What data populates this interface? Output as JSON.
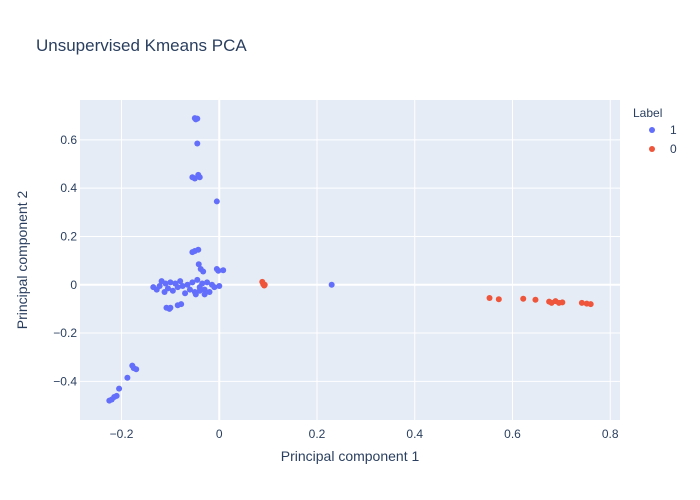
{
  "chart_data": {
    "type": "scatter",
    "title": "Unsupervised Kmeans PCA",
    "xlabel": "Principal component 1",
    "ylabel": "Principal component 2",
    "xlim": [
      -0.285,
      0.82
    ],
    "ylim": [
      -0.56,
      0.765
    ],
    "x_ticks": [
      -0.2,
      0,
      0.2,
      0.4,
      0.6,
      0.8
    ],
    "x_tick_labels": [
      "−0.2",
      "0",
      "0.2",
      "0.4",
      "0.6",
      "0.8"
    ],
    "y_ticks": [
      -0.4,
      -0.2,
      0,
      0.2,
      0.4,
      0.6
    ],
    "y_tick_labels": [
      "−0.4",
      "−0.2",
      "0",
      "0.2",
      "0.4",
      "0.6"
    ],
    "grid": true,
    "legend_title": "Label",
    "legend_position": "top-right",
    "background_color": "#e5ecf6",
    "series": [
      {
        "name": "1",
        "color": "#636efa",
        "points": [
          [
            -0.05,
            0.69
          ],
          [
            -0.048,
            0.685
          ],
          [
            -0.045,
            0.688
          ],
          [
            -0.045,
            0.585
          ],
          [
            -0.055,
            0.445
          ],
          [
            -0.05,
            0.44
          ],
          [
            -0.043,
            0.455
          ],
          [
            -0.04,
            0.445
          ],
          [
            -0.005,
            0.345
          ],
          [
            -0.055,
            0.135
          ],
          [
            -0.05,
            0.14
          ],
          [
            -0.043,
            0.145
          ],
          [
            -0.005,
            0.065
          ],
          [
            -0.002,
            0.058
          ],
          [
            0.008,
            0.06
          ],
          [
            -0.042,
            0.085
          ],
          [
            -0.038,
            0.065
          ],
          [
            -0.033,
            0.055
          ],
          [
            -0.135,
            -0.01
          ],
          [
            -0.128,
            -0.02
          ],
          [
            -0.122,
            -0.005
          ],
          [
            -0.118,
            0.015
          ],
          [
            -0.112,
            -0.03
          ],
          [
            -0.11,
            0.005
          ],
          [
            -0.105,
            -0.015
          ],
          [
            -0.1,
            0.01
          ],
          [
            -0.095,
            -0.025
          ],
          [
            -0.09,
            0.005
          ],
          [
            -0.085,
            -0.01
          ],
          [
            -0.08,
            0.015
          ],
          [
            -0.075,
            -0.005
          ],
          [
            -0.07,
            -0.035
          ],
          [
            -0.065,
            0.0
          ],
          [
            -0.06,
            -0.02
          ],
          [
            -0.055,
            0.01
          ],
          [
            -0.05,
            -0.03
          ],
          [
            -0.045,
            0.02
          ],
          [
            -0.04,
            -0.01
          ],
          [
            -0.035,
            0.005
          ],
          [
            -0.03,
            -0.02
          ],
          [
            -0.025,
            0.01
          ],
          [
            -0.02,
            -0.03
          ],
          [
            -0.015,
            0.0
          ],
          [
            -0.01,
            -0.01
          ],
          [
            0.0,
            -0.005
          ],
          [
            -0.048,
            -0.04
          ],
          [
            -0.04,
            -0.025
          ],
          [
            -0.03,
            -0.04
          ],
          [
            -0.108,
            -0.095
          ],
          [
            -0.102,
            -0.1
          ],
          [
            -0.1,
            -0.095
          ],
          [
            -0.085,
            -0.085
          ],
          [
            -0.078,
            -0.08
          ],
          [
            0.23,
            0.0
          ],
          [
            -0.178,
            -0.335
          ],
          [
            -0.175,
            -0.345
          ],
          [
            -0.17,
            -0.35
          ],
          [
            -0.188,
            -0.385
          ],
          [
            -0.205,
            -0.43
          ],
          [
            -0.21,
            -0.46
          ],
          [
            -0.215,
            -0.465
          ],
          [
            -0.22,
            -0.475
          ],
          [
            -0.225,
            -0.48
          ]
        ]
      },
      {
        "name": "0",
        "color": "#ef553b",
        "points": [
          [
            0.088,
            0.012
          ],
          [
            0.09,
            0.002
          ],
          [
            0.092,
            -0.003
          ],
          [
            0.093,
            0.0
          ],
          [
            0.553,
            -0.055
          ],
          [
            0.572,
            -0.06
          ],
          [
            0.622,
            -0.058
          ],
          [
            0.647,
            -0.062
          ],
          [
            0.675,
            -0.07
          ],
          [
            0.68,
            -0.075
          ],
          [
            0.688,
            -0.068
          ],
          [
            0.695,
            -0.075
          ],
          [
            0.702,
            -0.073
          ],
          [
            0.742,
            -0.075
          ],
          [
            0.752,
            -0.078
          ],
          [
            0.76,
            -0.08
          ]
        ]
      }
    ]
  }
}
